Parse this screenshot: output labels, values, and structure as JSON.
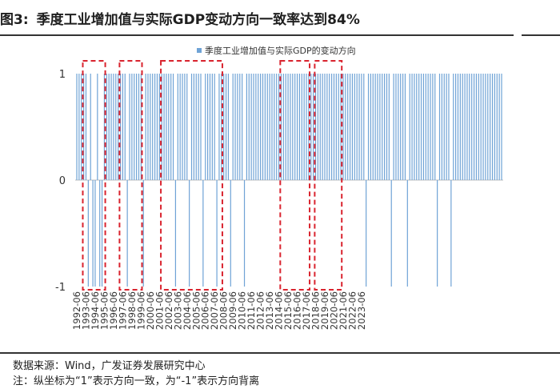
{
  "header": {
    "figure_label": "图3:",
    "title": "季度工业增加值与实际GDP变动方向一致率达到84%"
  },
  "footer": {
    "source": "数据来源：Wind，广发证券发展研究中心",
    "note": "注：纵坐标为“1”表示方向一致，为“-1”表示方向背离"
  },
  "colors": {
    "bar": "#6fa3d6",
    "highlight": "#d9232e",
    "axis": "#bfbfbf"
  },
  "chart_data": {
    "type": "bar",
    "title": "",
    "legend": {
      "label": "季度工业增加值与实际GDP的变动方向",
      "position": "top-center"
    },
    "xlabel": "",
    "ylabel": "",
    "ylim": [
      -1,
      1
    ],
    "y_ticks": [
      "1",
      "0",
      "-1"
    ],
    "x_tick_labels": [
      "1992-06",
      "1993-06",
      "1994-06",
      "1995-06",
      "1996-06",
      "1997-06",
      "1998-06",
      "1999-06",
      "2000-06",
      "2001-06",
      "2002-06",
      "2003-06",
      "2004-06",
      "2005-06",
      "2006-06",
      "2007-06",
      "2008-06",
      "2009-06",
      "2010-06",
      "2011-06",
      "2012-06",
      "2013-06",
      "2014-06",
      "2015-06",
      "2016-06",
      "2017-06",
      "2018-06",
      "2019-06",
      "2020-06",
      "2021-06",
      "2022-06",
      "2023-06"
    ],
    "start_quarter": "1992-Q2",
    "values": [
      1,
      1,
      1,
      1,
      1,
      -1,
      1,
      -1,
      -1,
      1,
      -1,
      -1,
      1,
      1,
      1,
      1,
      1,
      1,
      1,
      1,
      1,
      1,
      -1,
      1,
      1,
      1,
      1,
      1,
      1,
      -1,
      1,
      1,
      1,
      1,
      1,
      1,
      1,
      1,
      1,
      1,
      1,
      1,
      1,
      -1,
      1,
      1,
      1,
      1,
      1,
      -1,
      1,
      1,
      1,
      1,
      1,
      -1,
      1,
      1,
      1,
      1,
      1,
      -1,
      1,
      1,
      1,
      1,
      1,
      -1,
      1,
      1,
      1,
      1,
      1,
      -1,
      1,
      1,
      1,
      1,
      1,
      1,
      1,
      1,
      1,
      1,
      1,
      1,
      1,
      1,
      1,
      1,
      1,
      1,
      1,
      1,
      1,
      1,
      1,
      1,
      1,
      1,
      1,
      1,
      1,
      1,
      1,
      1,
      1,
      1,
      1,
      1,
      1,
      1,
      1,
      1,
      1,
      1,
      1,
      1,
      1,
      1,
      1,
      1,
      1,
      1,
      1,
      1,
      -1,
      1,
      1,
      1,
      1,
      1,
      1,
      1,
      1,
      1,
      1,
      -1,
      1,
      1,
      1,
      1,
      1,
      1,
      -1,
      1,
      1,
      1,
      1,
      1,
      1,
      1,
      1,
      1,
      1,
      1,
      1,
      -1,
      1,
      1,
      1,
      1,
      1,
      -1,
      1,
      1,
      1,
      1,
      1,
      1,
      1,
      1,
      1,
      1,
      1,
      1,
      1,
      1,
      1,
      1,
      1,
      1,
      1,
      1,
      1,
      1
    ],
    "highlight_ranges": [
      {
        "from": "1993-06",
        "to": "1995-03"
      },
      {
        "from": "1997-06",
        "to": "1999-03"
      },
      {
        "from": "2001-12",
        "to": "2007-12"
      },
      {
        "from": "2014-12",
        "to": "2017-06"
      },
      {
        "from": "2018-09",
        "to": "2020-12"
      }
    ]
  }
}
